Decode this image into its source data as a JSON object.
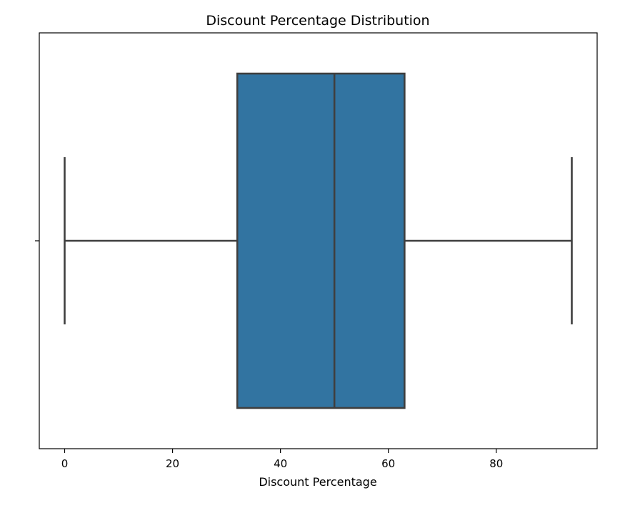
{
  "chart_data": {
    "type": "box",
    "title": "Discount Percentage Distribution",
    "xlabel": "Discount Percentage",
    "ylabel": "",
    "orientation": "horizontal",
    "xlim": [
      -4.7,
      98.7
    ],
    "xticks": [
      0,
      20,
      40,
      60,
      80
    ],
    "grid": false,
    "box_color": "#3274a1",
    "line_color": "#3f3f3f",
    "stats": {
      "min": 0,
      "q1": 32,
      "median": 50,
      "q3": 63,
      "max": 94
    }
  }
}
